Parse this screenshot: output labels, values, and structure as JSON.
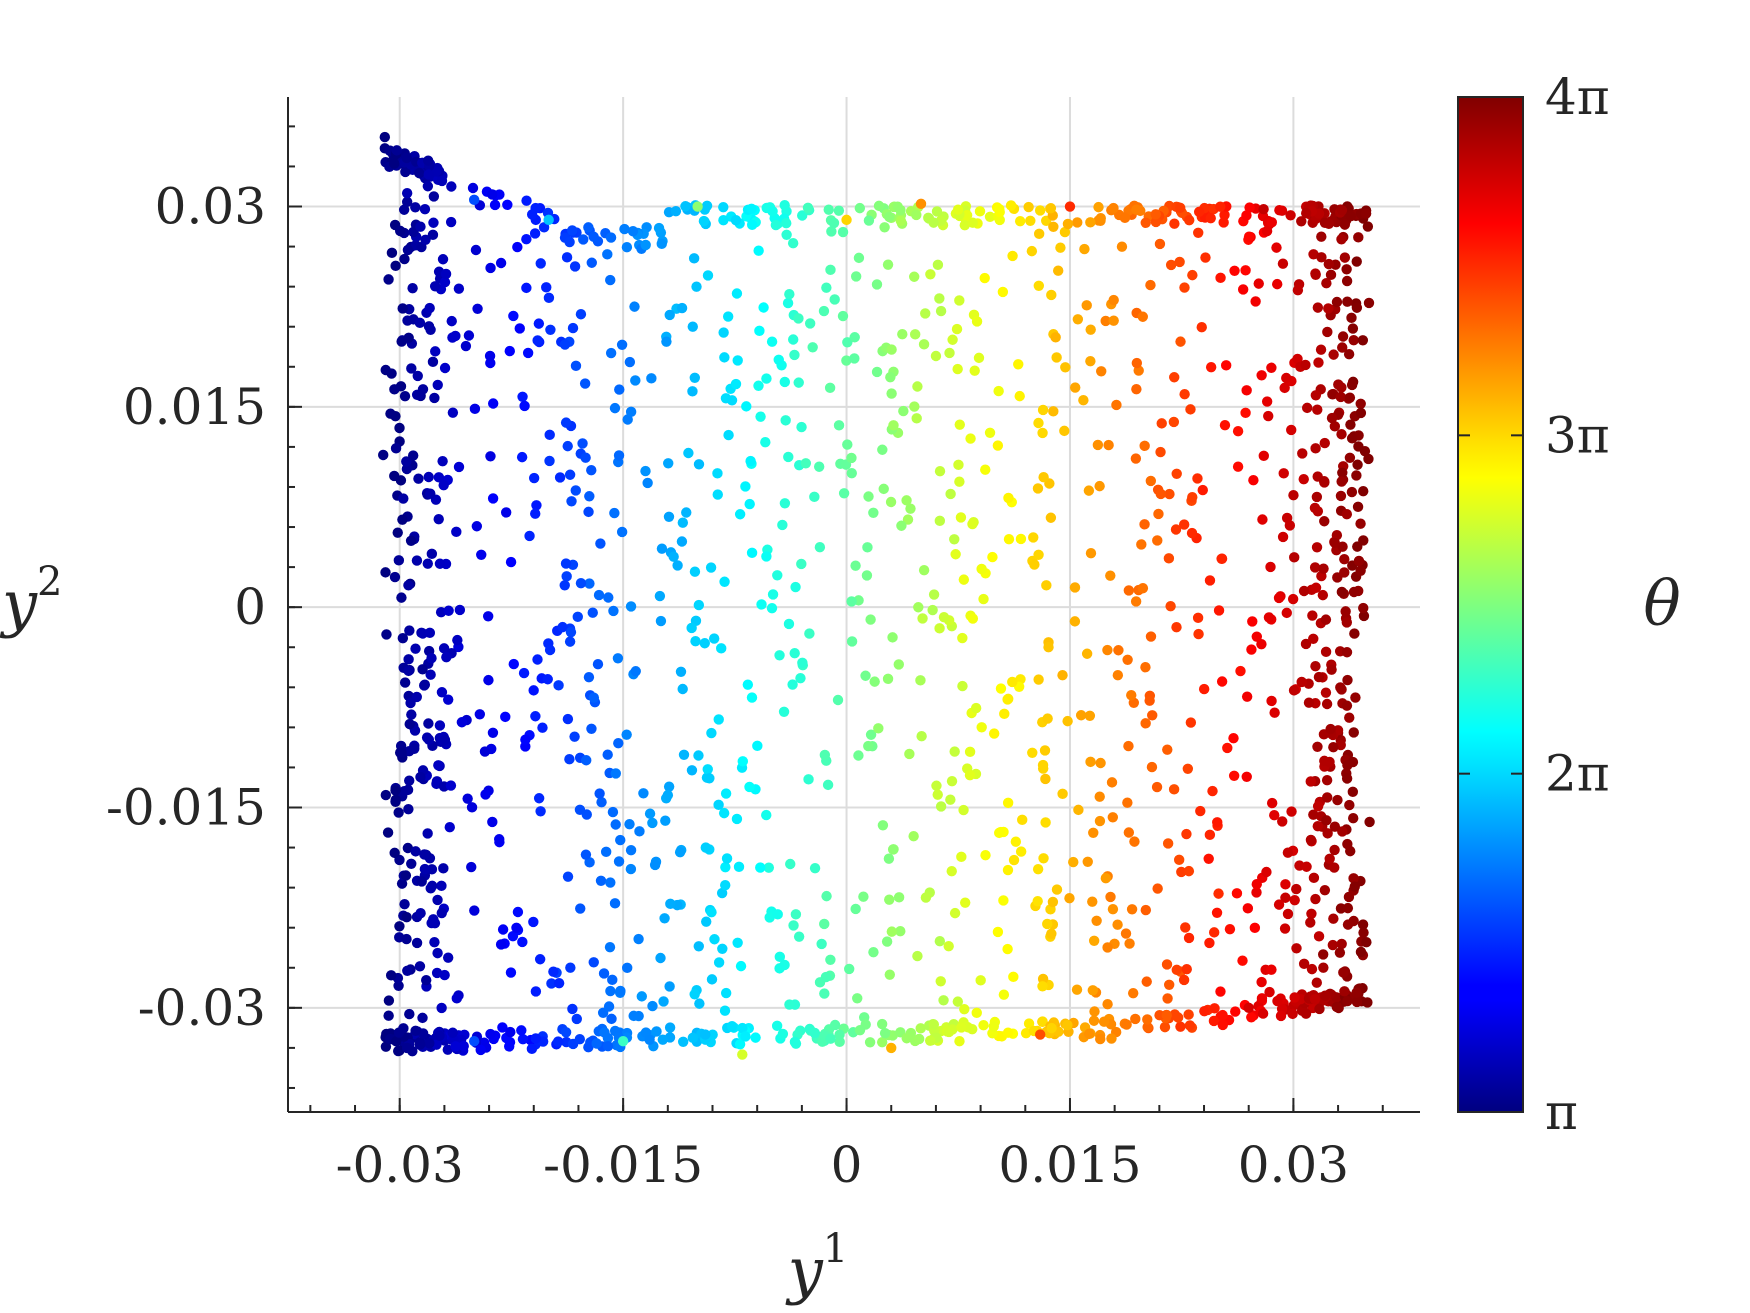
{
  "chart_data": {
    "type": "scatter",
    "title": "",
    "xlabel": "y",
    "xlabel_superscript": "1",
    "ylabel": "y",
    "ylabel_superscript": "2",
    "xlim": [
      -0.0375,
      0.0385
    ],
    "ylim": [
      -0.0378,
      0.0382
    ],
    "x_ticks": [
      -0.03,
      -0.015,
      0,
      0.015,
      0.03
    ],
    "x_tick_labels": [
      "-0.03",
      "-0.015",
      "0",
      "0.015",
      "0.03"
    ],
    "y_ticks": [
      -0.03,
      -0.015,
      0,
      0.015,
      0.03
    ],
    "y_tick_labels": [
      "-0.03",
      "-0.015",
      "0",
      "0.015",
      "0.03"
    ],
    "grid": true,
    "colormap": "jet",
    "colorbar": {
      "label": "θ",
      "range_pi_multiples": [
        1,
        4
      ],
      "ticks_pi_multiples": [
        1,
        2,
        3,
        4
      ],
      "tick_labels": [
        "π",
        "2π",
        "3π",
        "4π"
      ],
      "placement": "right"
    },
    "color_variable": "θ",
    "description_of_points": "approx. 2000 points filling a rectangular sheet; colour (θ) increases from π at the left edge (y1 ≈ -0.031) to 4π at the right edge (y1 ≈ 0.035); top edge near y2 ≈ 0.030 rising to ≈ 0.035 at the upper-left corner, bottom edge near y2 ≈ -0.033",
    "point_count": 2000,
    "edge_points": [
      {
        "x": -0.031,
        "y": 0.0352,
        "theta_pi": 1.0
      },
      {
        "x": -0.0295,
        "y": 0.031,
        "theta_pi": 1.15
      },
      {
        "x": -0.025,
        "y": 0.0305,
        "theta_pi": 1.6
      },
      {
        "x": -0.02,
        "y": 0.029,
        "theta_pi": 1.95
      },
      {
        "x": -0.01,
        "y": 0.03,
        "theta_pi": 2.55
      },
      {
        "x": 0.0,
        "y": 0.029,
        "theta_pi": 3.0
      },
      {
        "x": 0.005,
        "y": 0.0302,
        "theta_pi": 3.2
      },
      {
        "x": 0.015,
        "y": 0.03,
        "theta_pi": 3.5
      },
      {
        "x": 0.028,
        "y": 0.0298,
        "theta_pi": 3.8
      },
      {
        "x": 0.035,
        "y": 0.0285,
        "theta_pi": 4.0
      },
      {
        "x": -0.0295,
        "y": -0.033,
        "theta_pi": 1.05
      },
      {
        "x": -0.025,
        "y": -0.0325,
        "theta_pi": 1.6
      },
      {
        "x": -0.015,
        "y": -0.0325,
        "theta_pi": 2.3
      },
      {
        "x": -0.007,
        "y": -0.0335,
        "theta_pi": 2.75
      },
      {
        "x": 0.003,
        "y": -0.033,
        "theta_pi": 3.1
      },
      {
        "x": 0.013,
        "y": -0.032,
        "theta_pi": 3.4
      },
      {
        "x": 0.027,
        "y": -0.03,
        "theta_pi": 3.75
      },
      {
        "x": 0.032,
        "y": -0.026,
        "theta_pi": 3.95
      }
    ]
  }
}
